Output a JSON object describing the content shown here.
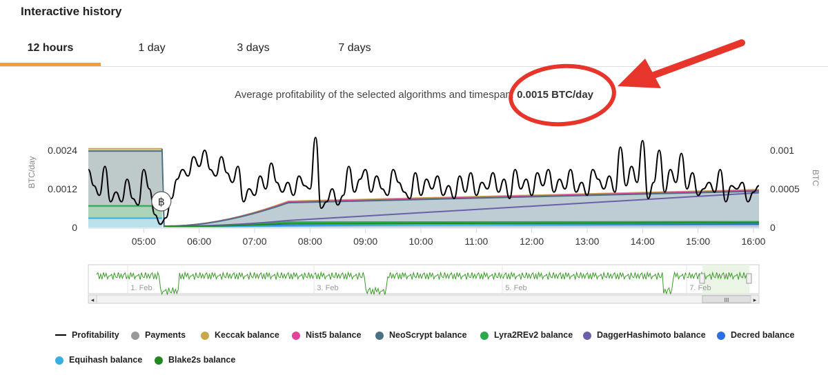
{
  "page": {
    "title": "Interactive history"
  },
  "tabs": [
    {
      "label": "12 hours",
      "active": true
    },
    {
      "label": "1 day",
      "active": false
    },
    {
      "label": "3 days",
      "active": false
    },
    {
      "label": "7 days",
      "active": false
    }
  ],
  "summary": {
    "prefix": "Average profitability of the selected algorithms and timespan: ",
    "value": "0.0015 BTC/day"
  },
  "annotation_color": "#e8352c",
  "chart_data": {
    "type": "line",
    "xlabel": "",
    "ylabel_left": "BTC/day",
    "ylabel_right": "BTC",
    "x_ticks": [
      "05:00",
      "06:00",
      "07:00",
      "08:00",
      "09:00",
      "10:00",
      "11:00",
      "12:00",
      "13:00",
      "14:00",
      "15:00",
      "16:00"
    ],
    "y_left_ticks": [
      "0",
      "0.0012",
      "0.0024"
    ],
    "y_right_ticks": [
      "0",
      "0.0005",
      "0.001"
    ],
    "ylim_left": [
      0,
      0.0024
    ],
    "ylim_right": [
      0,
      0.001
    ],
    "x_range_hours": [
      4.0,
      16.1
    ],
    "payment_time": 5.33,
    "payment_icon": "bitcoin-icon",
    "series": [
      {
        "name": "Profitability",
        "axis": "left",
        "color": "#000000",
        "x": [
          4.0,
          4.1,
          4.2,
          4.3,
          4.4,
          4.5,
          4.6,
          4.7,
          4.8,
          4.9,
          5.0,
          5.1,
          5.2,
          5.3,
          5.4,
          5.5,
          5.6,
          5.7,
          5.8,
          5.9,
          6.0,
          6.1,
          6.2,
          6.3,
          6.4,
          6.5,
          6.6,
          6.7,
          6.8,
          6.9,
          7.0,
          7.1,
          7.2,
          7.3,
          7.4,
          7.5,
          7.6,
          7.7,
          7.8,
          7.9,
          8.0,
          8.1,
          8.2,
          8.3,
          8.4,
          8.5,
          8.6,
          8.7,
          8.8,
          8.9,
          9.0,
          9.1,
          9.2,
          9.3,
          9.4,
          9.5,
          9.6,
          9.7,
          9.8,
          9.9,
          10.0,
          10.1,
          10.2,
          10.3,
          10.4,
          10.5,
          10.6,
          10.7,
          10.8,
          10.9,
          11.0,
          11.1,
          11.2,
          11.3,
          11.4,
          11.5,
          11.6,
          11.7,
          11.8,
          11.9,
          12.0,
          12.1,
          12.2,
          12.3,
          12.4,
          12.5,
          12.6,
          12.7,
          12.8,
          12.9,
          13.0,
          13.1,
          13.2,
          13.3,
          13.4,
          13.5,
          13.6,
          13.7,
          13.8,
          13.9,
          14.0,
          14.1,
          14.2,
          14.3,
          14.4,
          14.5,
          14.6,
          14.7,
          14.8,
          14.9,
          15.0,
          15.1,
          15.2,
          15.3,
          15.4,
          15.5,
          15.6,
          15.7,
          15.8,
          15.9,
          16.0,
          16.1
        ],
        "values": [
          0.0018,
          0.0013,
          0.001,
          0.0019,
          0.0008,
          0.0011,
          0.0008,
          0.0015,
          0.0009,
          0.0007,
          0.0018,
          0.0012,
          0.0004,
          0.0001,
          0.0003,
          0.0009,
          0.0015,
          0.0018,
          0.0016,
          0.0022,
          0.0019,
          0.0024,
          0.0018,
          0.0016,
          0.0022,
          0.0017,
          0.0014,
          0.0019,
          0.0008,
          0.0012,
          0.001,
          0.0016,
          0.0012,
          0.002,
          0.0014,
          0.0011,
          0.0014,
          0.001,
          0.0016,
          0.0013,
          0.0012,
          0.0028,
          0.0006,
          0.0008,
          0.0012,
          0.0007,
          0.001,
          0.0019,
          0.0011,
          0.0015,
          0.0018,
          0.0011,
          0.0016,
          0.0012,
          0.001,
          0.0018,
          0.0014,
          0.0011,
          0.0009,
          0.0017,
          0.001,
          0.0015,
          0.0012,
          0.0016,
          0.001,
          0.0013,
          0.0009,
          0.0016,
          0.0011,
          0.0017,
          0.001,
          0.0014,
          0.0012,
          0.0017,
          0.0011,
          0.0015,
          0.0009,
          0.0018,
          0.0012,
          0.0015,
          0.001,
          0.0017,
          0.0013,
          0.0018,
          0.0011,
          0.0015,
          0.0012,
          0.0018,
          0.0011,
          0.0014,
          0.001,
          0.0018,
          0.0015,
          0.0012,
          0.0016,
          0.0011,
          0.0025,
          0.0013,
          0.0019,
          0.0014,
          0.0027,
          0.0009,
          0.0014,
          0.0024,
          0.0011,
          0.0018,
          0.0014,
          0.0023,
          0.0012,
          0.0017,
          0.001,
          0.0012,
          0.0014,
          0.0011,
          0.0018,
          0.0008,
          0.0013,
          0.0012,
          0.0014,
          0.0008,
          0.0011,
          0.0013
        ]
      },
      {
        "name": "Payments",
        "axis": "none",
        "color": "#999999"
      },
      {
        "name": "Keccak balance",
        "axis": "right",
        "color": "#c9a84c",
        "start": 0.00034,
        "end": 0.00049
      },
      {
        "name": "Nist5 balance",
        "axis": "right",
        "color": "#e0439b",
        "start": 0.00033,
        "end": 0.00048
      },
      {
        "name": "NeoScrypt balance",
        "axis": "right",
        "color": "#4b7083",
        "start": 0.00032,
        "end": 0.00047
      },
      {
        "name": "Lyra2REv2 balance",
        "axis": "right",
        "color": "#2ba84a",
        "start": 7e-05,
        "end": 7.5e-05
      },
      {
        "name": "DaggerHashimoto balance",
        "axis": "right",
        "color": "#6a5fa8",
        "start": 9e-05,
        "end": 0.00045
      },
      {
        "name": "Decred balance",
        "axis": "right",
        "color": "#2a6fe0",
        "start": 3e-05,
        "end": 4e-05
      },
      {
        "name": "Equihash balance",
        "axis": "right",
        "color": "#3aaee0",
        "start": 2e-05,
        "end": 6e-05
      },
      {
        "name": "Blake2s balance",
        "axis": "right",
        "color": "#228822",
        "start": 5e-05,
        "end": 6e-05
      }
    ],
    "navigator": {
      "ticks": [
        "1. Feb",
        "3. Feb",
        "5. Feb",
        "7. Feb"
      ],
      "color": "#3a9a28",
      "scrollbar_grip": "III"
    }
  }
}
